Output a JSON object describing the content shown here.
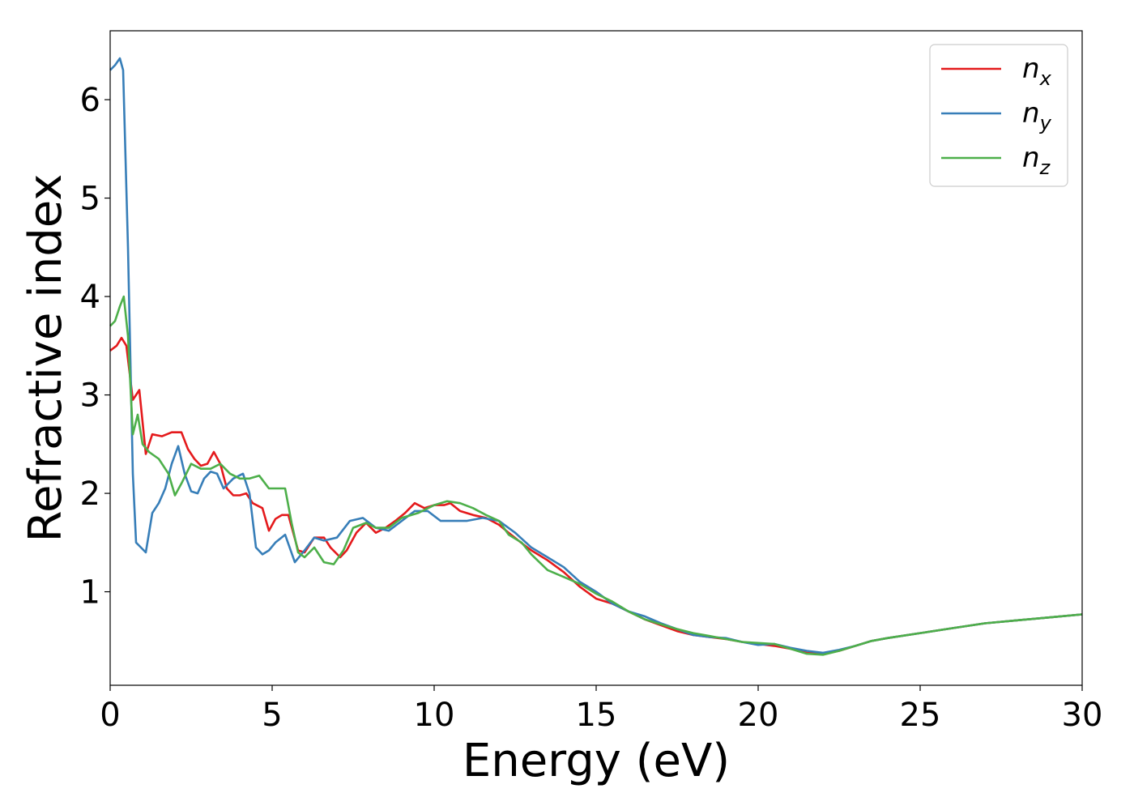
{
  "chart_data": {
    "type": "line",
    "title": "",
    "xlabel": "Energy (eV)",
    "ylabel": "Refractive index",
    "xlim": [
      0,
      30
    ],
    "ylim": [
      0.05,
      6.7
    ],
    "xticks": [
      0,
      5,
      10,
      15,
      20,
      25,
      30
    ],
    "yticks": [
      1,
      2,
      3,
      4,
      5,
      6
    ],
    "grid": false,
    "legend_position": "top-right",
    "colors": {
      "nx": "#e41a1c",
      "ny": "#377eb8",
      "nz": "#4daf4a"
    },
    "series": [
      {
        "name": "n",
        "subscript": "x",
        "color": "#e41a1c",
        "points": [
          [
            0,
            3.45
          ],
          [
            0.2,
            3.5
          ],
          [
            0.35,
            3.58
          ],
          [
            0.5,
            3.5
          ],
          [
            0.7,
            2.95
          ],
          [
            0.9,
            3.05
          ],
          [
            1.1,
            2.4
          ],
          [
            1.3,
            2.6
          ],
          [
            1.6,
            2.58
          ],
          [
            1.9,
            2.62
          ],
          [
            2.2,
            2.62
          ],
          [
            2.4,
            2.45
          ],
          [
            2.6,
            2.35
          ],
          [
            2.8,
            2.28
          ],
          [
            3.0,
            2.3
          ],
          [
            3.2,
            2.42
          ],
          [
            3.4,
            2.3
          ],
          [
            3.6,
            2.05
          ],
          [
            3.8,
            1.98
          ],
          [
            4.0,
            1.98
          ],
          [
            4.2,
            2.0
          ],
          [
            4.4,
            1.9
          ],
          [
            4.7,
            1.85
          ],
          [
            4.9,
            1.62
          ],
          [
            5.1,
            1.74
          ],
          [
            5.3,
            1.78
          ],
          [
            5.5,
            1.78
          ],
          [
            5.8,
            1.42
          ],
          [
            6.0,
            1.4
          ],
          [
            6.3,
            1.55
          ],
          [
            6.6,
            1.55
          ],
          [
            6.8,
            1.45
          ],
          [
            7.1,
            1.35
          ],
          [
            7.3,
            1.42
          ],
          [
            7.6,
            1.6
          ],
          [
            7.9,
            1.7
          ],
          [
            8.2,
            1.6
          ],
          [
            8.5,
            1.65
          ],
          [
            8.8,
            1.72
          ],
          [
            9.1,
            1.8
          ],
          [
            9.4,
            1.9
          ],
          [
            9.7,
            1.85
          ],
          [
            10.0,
            1.88
          ],
          [
            10.3,
            1.88
          ],
          [
            10.5,
            1.9
          ],
          [
            10.8,
            1.82
          ],
          [
            11.2,
            1.78
          ],
          [
            11.6,
            1.75
          ],
          [
            12.0,
            1.68
          ],
          [
            12.3,
            1.6
          ],
          [
            12.6,
            1.52
          ],
          [
            13.0,
            1.42
          ],
          [
            13.5,
            1.32
          ],
          [
            14.0,
            1.2
          ],
          [
            14.5,
            1.05
          ],
          [
            15.0,
            0.93
          ],
          [
            15.5,
            0.88
          ],
          [
            16.0,
            0.8
          ],
          [
            16.5,
            0.72
          ],
          [
            17.0,
            0.66
          ],
          [
            17.5,
            0.6
          ],
          [
            18.0,
            0.56
          ],
          [
            18.5,
            0.54
          ],
          [
            19.0,
            0.52
          ],
          [
            19.5,
            0.49
          ],
          [
            20.0,
            0.47
          ],
          [
            20.5,
            0.45
          ],
          [
            21.0,
            0.42
          ],
          [
            21.5,
            0.38
          ],
          [
            22.0,
            0.37
          ],
          [
            22.5,
            0.4
          ],
          [
            23.0,
            0.45
          ],
          [
            23.5,
            0.5
          ],
          [
            24.0,
            0.53
          ],
          [
            25.0,
            0.58
          ],
          [
            26.0,
            0.63
          ],
          [
            27.0,
            0.68
          ],
          [
            28.0,
            0.71
          ],
          [
            29.0,
            0.74
          ],
          [
            30.0,
            0.77
          ]
        ]
      },
      {
        "name": "n",
        "subscript": "y",
        "color": "#377eb8",
        "points": [
          [
            0,
            6.3
          ],
          [
            0.15,
            6.35
          ],
          [
            0.3,
            6.42
          ],
          [
            0.4,
            6.3
          ],
          [
            0.55,
            4.5
          ],
          [
            0.7,
            2.2
          ],
          [
            0.8,
            1.5
          ],
          [
            0.95,
            1.45
          ],
          [
            1.1,
            1.4
          ],
          [
            1.3,
            1.8
          ],
          [
            1.5,
            1.9
          ],
          [
            1.7,
            2.05
          ],
          [
            1.9,
            2.3
          ],
          [
            2.1,
            2.48
          ],
          [
            2.3,
            2.2
          ],
          [
            2.5,
            2.02
          ],
          [
            2.7,
            2.0
          ],
          [
            2.9,
            2.15
          ],
          [
            3.1,
            2.22
          ],
          [
            3.3,
            2.2
          ],
          [
            3.5,
            2.05
          ],
          [
            3.8,
            2.15
          ],
          [
            4.1,
            2.2
          ],
          [
            4.3,
            2.0
          ],
          [
            4.5,
            1.45
          ],
          [
            4.7,
            1.38
          ],
          [
            4.9,
            1.42
          ],
          [
            5.1,
            1.5
          ],
          [
            5.4,
            1.58
          ],
          [
            5.7,
            1.3
          ],
          [
            6.0,
            1.42
          ],
          [
            6.3,
            1.55
          ],
          [
            6.6,
            1.52
          ],
          [
            7.0,
            1.55
          ],
          [
            7.4,
            1.72
          ],
          [
            7.8,
            1.75
          ],
          [
            8.2,
            1.65
          ],
          [
            8.6,
            1.62
          ],
          [
            9.0,
            1.72
          ],
          [
            9.4,
            1.82
          ],
          [
            9.8,
            1.82
          ],
          [
            10.2,
            1.72
          ],
          [
            10.6,
            1.72
          ],
          [
            11.0,
            1.72
          ],
          [
            11.5,
            1.75
          ],
          [
            12.0,
            1.72
          ],
          [
            12.5,
            1.6
          ],
          [
            13.0,
            1.45
          ],
          [
            13.5,
            1.35
          ],
          [
            14.0,
            1.25
          ],
          [
            14.5,
            1.1
          ],
          [
            15.0,
            1.0
          ],
          [
            15.5,
            0.88
          ],
          [
            16.0,
            0.8
          ],
          [
            16.5,
            0.75
          ],
          [
            17.0,
            0.68
          ],
          [
            17.5,
            0.62
          ],
          [
            18.0,
            0.56
          ],
          [
            18.5,
            0.54
          ],
          [
            19.0,
            0.53
          ],
          [
            19.5,
            0.49
          ],
          [
            20.0,
            0.46
          ],
          [
            20.5,
            0.47
          ],
          [
            21.0,
            0.43
          ],
          [
            21.5,
            0.4
          ],
          [
            22.0,
            0.38
          ],
          [
            22.5,
            0.41
          ],
          [
            23.0,
            0.45
          ],
          [
            23.5,
            0.5
          ],
          [
            24.0,
            0.53
          ],
          [
            25.0,
            0.58
          ],
          [
            26.0,
            0.63
          ],
          [
            27.0,
            0.68
          ],
          [
            28.0,
            0.71
          ],
          [
            29.0,
            0.74
          ],
          [
            30.0,
            0.77
          ]
        ]
      },
      {
        "name": "n",
        "subscript": "z",
        "color": "#4daf4a",
        "points": [
          [
            0,
            3.7
          ],
          [
            0.15,
            3.75
          ],
          [
            0.3,
            3.9
          ],
          [
            0.42,
            4.0
          ],
          [
            0.55,
            3.6
          ],
          [
            0.7,
            2.6
          ],
          [
            0.85,
            2.8
          ],
          [
            1.0,
            2.5
          ],
          [
            1.2,
            2.42
          ],
          [
            1.5,
            2.35
          ],
          [
            1.8,
            2.2
          ],
          [
            2.0,
            1.98
          ],
          [
            2.2,
            2.1
          ],
          [
            2.5,
            2.3
          ],
          [
            2.8,
            2.25
          ],
          [
            3.1,
            2.25
          ],
          [
            3.4,
            2.3
          ],
          [
            3.7,
            2.2
          ],
          [
            4.0,
            2.15
          ],
          [
            4.3,
            2.15
          ],
          [
            4.6,
            2.18
          ],
          [
            4.9,
            2.05
          ],
          [
            5.2,
            2.05
          ],
          [
            5.4,
            2.05
          ],
          [
            5.6,
            1.7
          ],
          [
            5.8,
            1.4
          ],
          [
            6.0,
            1.35
          ],
          [
            6.3,
            1.45
          ],
          [
            6.6,
            1.3
          ],
          [
            6.9,
            1.28
          ],
          [
            7.2,
            1.42
          ],
          [
            7.5,
            1.65
          ],
          [
            7.9,
            1.7
          ],
          [
            8.2,
            1.65
          ],
          [
            8.6,
            1.65
          ],
          [
            9.0,
            1.75
          ],
          [
            9.5,
            1.8
          ],
          [
            10.0,
            1.88
          ],
          [
            10.4,
            1.92
          ],
          [
            10.8,
            1.9
          ],
          [
            11.2,
            1.85
          ],
          [
            11.6,
            1.78
          ],
          [
            12.0,
            1.72
          ],
          [
            12.3,
            1.58
          ],
          [
            12.7,
            1.5
          ],
          [
            13.0,
            1.38
          ],
          [
            13.5,
            1.22
          ],
          [
            14.0,
            1.15
          ],
          [
            14.5,
            1.08
          ],
          [
            15.0,
            0.98
          ],
          [
            15.5,
            0.9
          ],
          [
            16.0,
            0.8
          ],
          [
            16.5,
            0.72
          ],
          [
            17.0,
            0.67
          ],
          [
            17.5,
            0.62
          ],
          [
            18.0,
            0.58
          ],
          [
            18.5,
            0.55
          ],
          [
            19.0,
            0.52
          ],
          [
            19.5,
            0.49
          ],
          [
            20.0,
            0.48
          ],
          [
            20.5,
            0.47
          ],
          [
            21.0,
            0.42
          ],
          [
            21.5,
            0.37
          ],
          [
            22.0,
            0.36
          ],
          [
            22.5,
            0.4
          ],
          [
            23.0,
            0.45
          ],
          [
            23.5,
            0.5
          ],
          [
            24.0,
            0.53
          ],
          [
            25.0,
            0.58
          ],
          [
            26.0,
            0.63
          ],
          [
            27.0,
            0.68
          ],
          [
            28.0,
            0.71
          ],
          [
            29.0,
            0.74
          ],
          [
            30.0,
            0.77
          ]
        ]
      }
    ]
  }
}
